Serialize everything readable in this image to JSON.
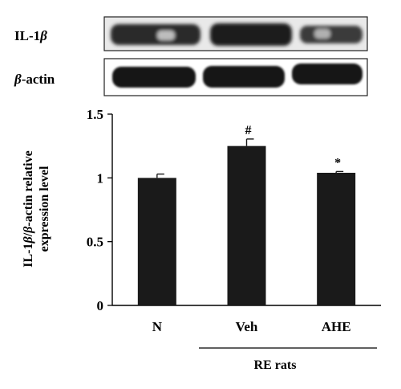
{
  "blot": {
    "rows": [
      {
        "label_main": "IL-1",
        "label_italic": "β"
      },
      {
        "label_italic": "β",
        "label_main": "-actin"
      }
    ]
  },
  "chart_data": {
    "type": "bar",
    "categories": [
      "N",
      "Veh",
      "AHE"
    ],
    "values": [
      1.0,
      1.25,
      1.04
    ],
    "errors": [
      0.03,
      0.055,
      0.01
    ],
    "annotations": [
      "",
      "#",
      "*"
    ],
    "ylabel_line1": {
      "a": "IL-1",
      "b": "β",
      "c": "/",
      "d": "β",
      "e": "-actin relative"
    },
    "ylabel_line2": "expression level",
    "ylim": [
      0,
      1.5
    ],
    "yticks": [
      0,
      0.5,
      1,
      1.5
    ],
    "ytick_labels": [
      "0",
      "0.5",
      "1",
      "1.5"
    ],
    "group_label": "RE rats",
    "bar_color": "#1a1a1a",
    "grid": false
  }
}
